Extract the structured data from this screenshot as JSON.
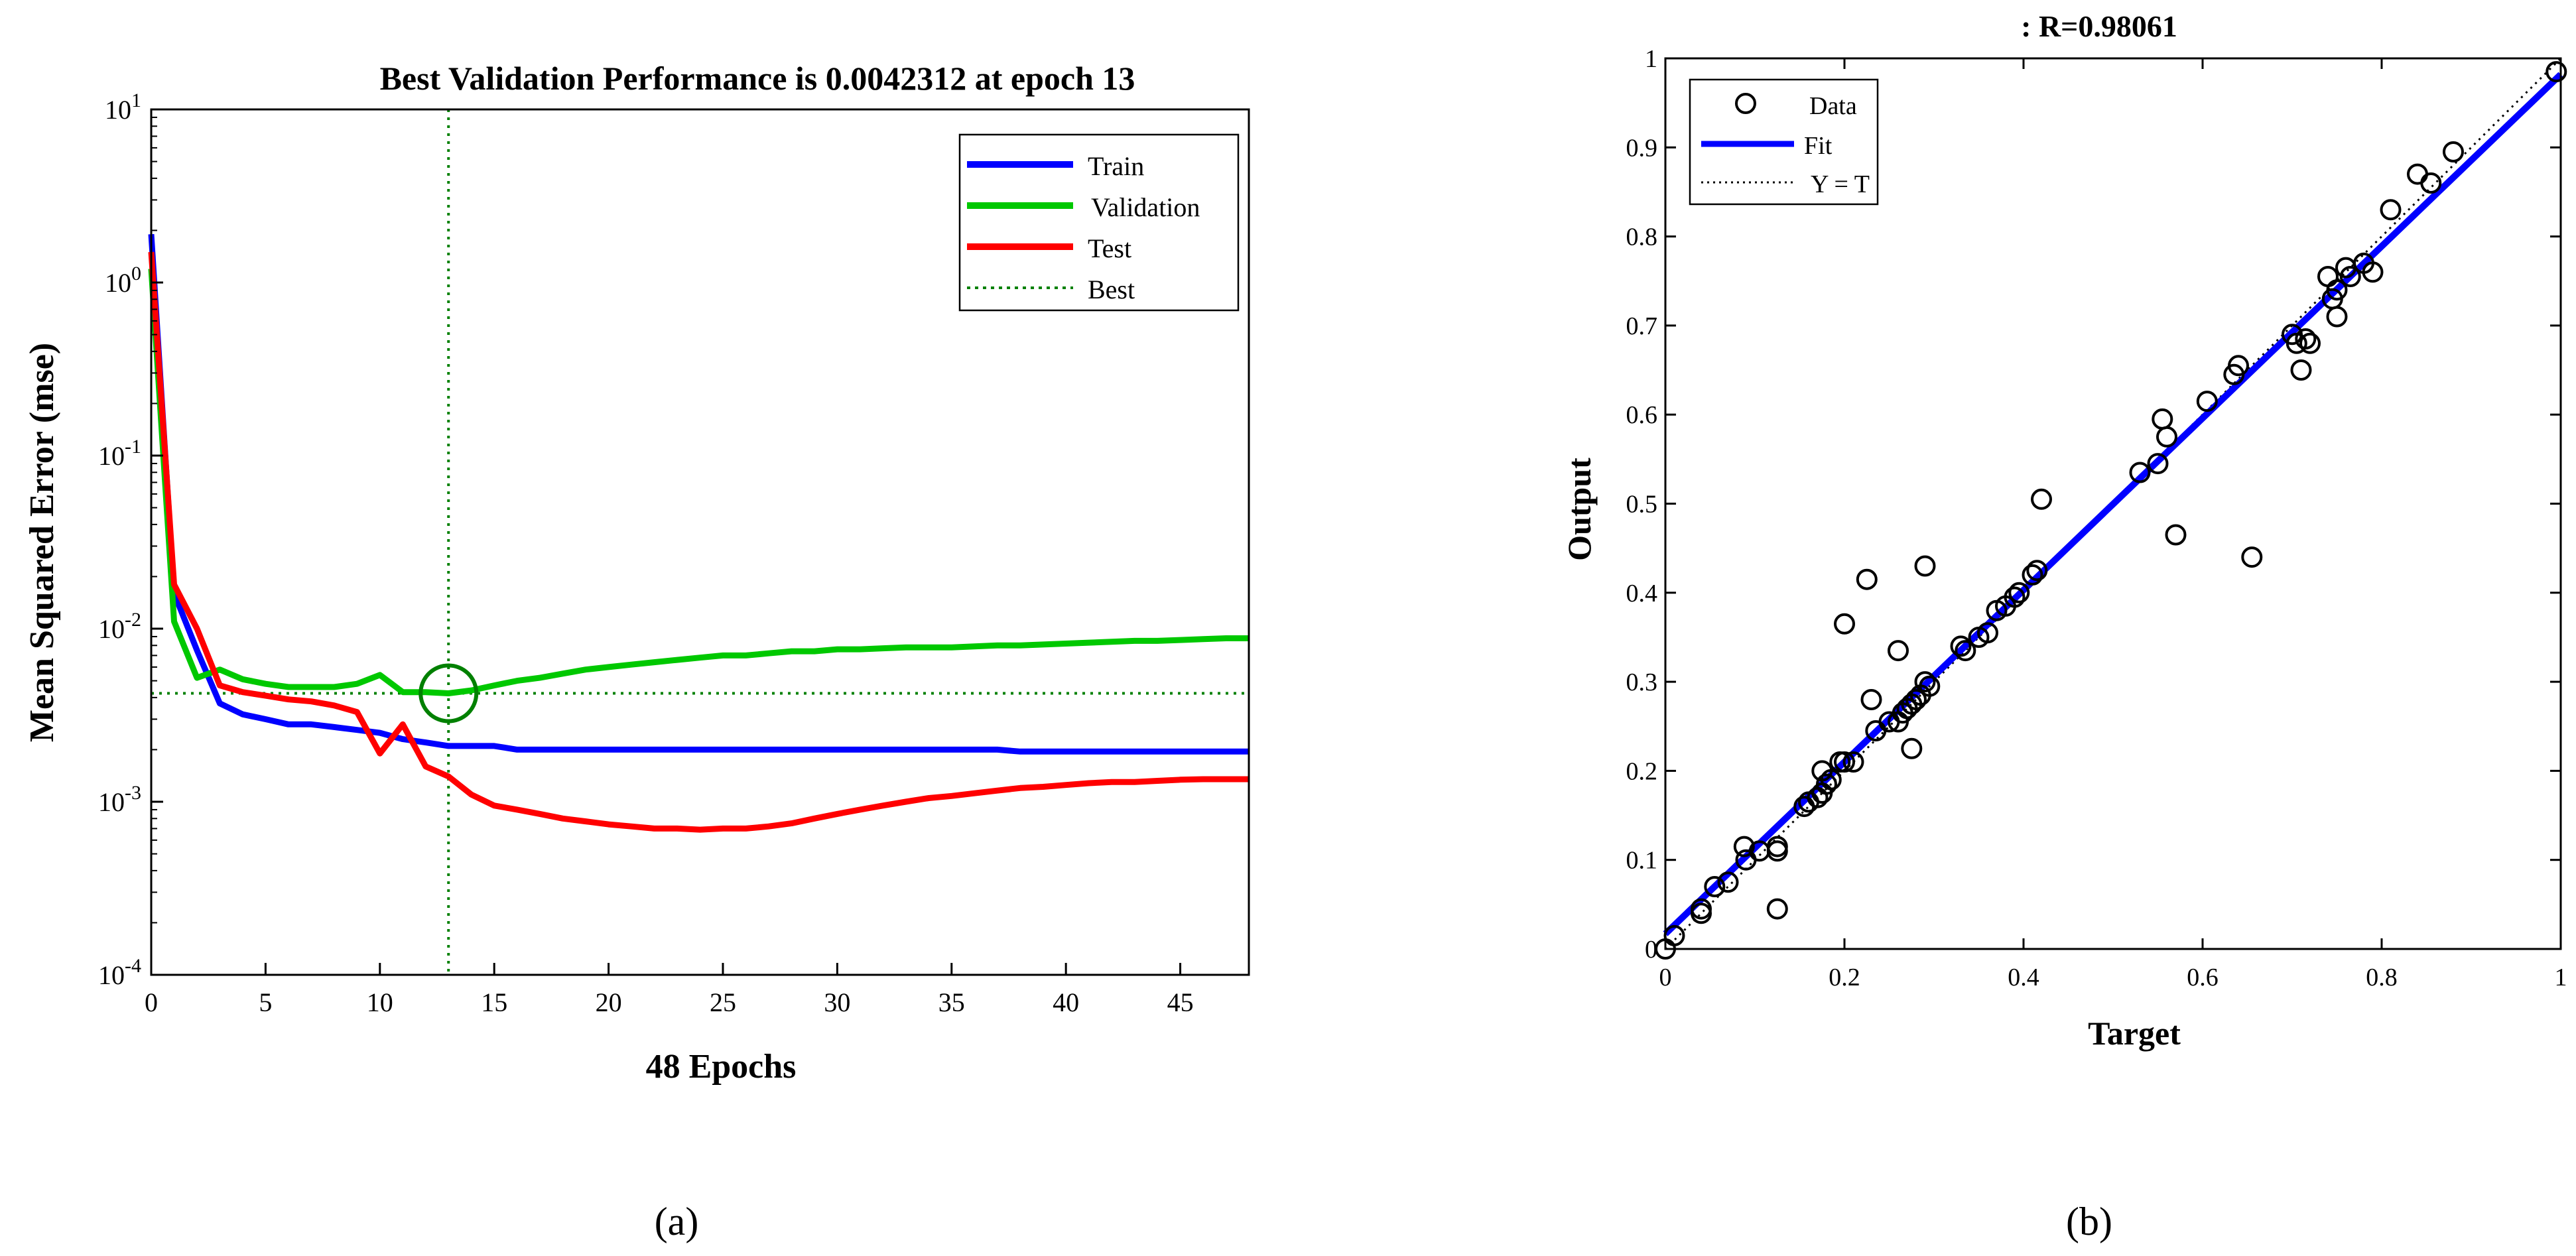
{
  "colors": {
    "train": "#0000ff",
    "validation": "#00c800",
    "test": "#ff0000",
    "best": "#008000",
    "fit": "#0000ff",
    "yt": "#000000",
    "axis": "#000000"
  },
  "chart_data": [
    {
      "type": "line",
      "panel_label": "(a)",
      "title": "Best Validation Performance is 0.0042312 at epoch 13",
      "xlabel": "48 Epochs",
      "ylabel": "Mean Squared Error  (mse)",
      "xscale": "linear",
      "yscale": "log",
      "xlim": [
        0,
        48
      ],
      "ylim": [
        0.0001,
        10
      ],
      "xticks": [
        0,
        5,
        10,
        15,
        20,
        25,
        30,
        35,
        40,
        45
      ],
      "yticks": [
        0.0001,
        0.001,
        0.01,
        0.1,
        1,
        10
      ],
      "ytick_exponents": [
        "-4",
        "-3",
        "-2",
        "-1",
        "0",
        "1"
      ],
      "ytick_base": "10",
      "legend_position": "top-right",
      "x": [
        0,
        1,
        2,
        3,
        4,
        5,
        6,
        7,
        8,
        9,
        10,
        11,
        12,
        13,
        14,
        15,
        16,
        17,
        18,
        19,
        20,
        21,
        22,
        23,
        24,
        25,
        26,
        27,
        28,
        29,
        30,
        31,
        32,
        33,
        34,
        35,
        36,
        37,
        38,
        39,
        40,
        41,
        42,
        43,
        44,
        45,
        46,
        47,
        48
      ],
      "series": [
        {
          "name": "Train",
          "color_key": "train",
          "values": [
            1.9,
            0.016,
            0.0075,
            0.0037,
            0.0032,
            0.003,
            0.0028,
            0.0028,
            0.0027,
            0.0026,
            0.0025,
            0.0023,
            0.0022,
            0.0021,
            0.0021,
            0.0021,
            0.002,
            0.002,
            0.002,
            0.002,
            0.002,
            0.002,
            0.002,
            0.002,
            0.002,
            0.002,
            0.002,
            0.002,
            0.002,
            0.002,
            0.002,
            0.002,
            0.002,
            0.002,
            0.002,
            0.002,
            0.002,
            0.002,
            0.00195,
            0.00195,
            0.00195,
            0.00195,
            0.00195,
            0.00195,
            0.00195,
            0.00195,
            0.00195,
            0.00195,
            0.00195
          ]
        },
        {
          "name": "Validation",
          "color_key": "validation",
          "values": [
            1.2,
            0.011,
            0.0052,
            0.0058,
            0.0051,
            0.0048,
            0.0046,
            0.0046,
            0.0046,
            0.0048,
            0.0054,
            0.0043,
            0.0043,
            0.0042312,
            0.0044,
            0.0047,
            0.005,
            0.0052,
            0.0055,
            0.0058,
            0.006,
            0.0062,
            0.0064,
            0.0066,
            0.0068,
            0.007,
            0.007,
            0.0072,
            0.0074,
            0.0074,
            0.0076,
            0.0076,
            0.0077,
            0.0078,
            0.0078,
            0.0078,
            0.0079,
            0.008,
            0.008,
            0.0081,
            0.0082,
            0.0083,
            0.0084,
            0.0085,
            0.0085,
            0.0086,
            0.0087,
            0.0088,
            0.0088
          ]
        },
        {
          "name": "Test",
          "color_key": "test",
          "values": [
            1.5,
            0.018,
            0.01,
            0.0047,
            0.0043,
            0.0041,
            0.0039,
            0.0038,
            0.0036,
            0.0033,
            0.0019,
            0.0028,
            0.0016,
            0.0014,
            0.0011,
            0.00095,
            0.0009,
            0.00085,
            0.0008,
            0.00077,
            0.00074,
            0.00072,
            0.0007,
            0.0007,
            0.00069,
            0.0007,
            0.0007,
            0.00072,
            0.00075,
            0.0008,
            0.00085,
            0.0009,
            0.00095,
            0.001,
            0.00105,
            0.00108,
            0.00112,
            0.00116,
            0.0012,
            0.00122,
            0.00125,
            0.00128,
            0.0013,
            0.0013,
            0.00132,
            0.00134,
            0.00135,
            0.00135,
            0.00135
          ]
        }
      ],
      "best": {
        "name": "Best",
        "epoch": 13,
        "value": 0.0042312
      },
      "legend": [
        "Train",
        "Validation",
        "Test",
        "Best"
      ]
    },
    {
      "type": "scatter",
      "panel_label": "(b)",
      "title": ": R=0.98061",
      "xlabel": "Target",
      "ylabel": "Output",
      "xlim": [
        0,
        1
      ],
      "ylim": [
        0,
        1
      ],
      "xticks": [
        0,
        0.2,
        0.4,
        0.6,
        0.8,
        1
      ],
      "xtick_labels": [
        "0",
        "0.2",
        "0.4",
        "0.6",
        "0.8",
        "1"
      ],
      "yticks": [
        0,
        0.1,
        0.2,
        0.3,
        0.4,
        0.5,
        0.6,
        0.7,
        0.8,
        0.9,
        1
      ],
      "ytick_labels": [
        "0",
        "0.1",
        "0.2",
        "0.3",
        "0.4",
        "0.5",
        "0.6",
        "0.7",
        "0.8",
        "0.9",
        "1"
      ],
      "legend": [
        "Data",
        "Fit",
        "Y = T"
      ],
      "legend_position": "top-left",
      "fit_line": {
        "slope": 0.965,
        "intercept": 0.017
      },
      "points": [
        [
          0.0,
          0.0
        ],
        [
          0.01,
          0.015
        ],
        [
          0.04,
          0.04
        ],
        [
          0.04,
          0.045
        ],
        [
          0.055,
          0.07
        ],
        [
          0.07,
          0.075
        ],
        [
          0.09,
          0.1
        ],
        [
          0.088,
          0.115
        ],
        [
          0.105,
          0.11
        ],
        [
          0.125,
          0.11
        ],
        [
          0.125,
          0.115
        ],
        [
          0.125,
          0.045
        ],
        [
          0.155,
          0.16
        ],
        [
          0.16,
          0.165
        ],
        [
          0.17,
          0.17
        ],
        [
          0.175,
          0.175
        ],
        [
          0.18,
          0.185
        ],
        [
          0.185,
          0.19
        ],
        [
          0.195,
          0.21
        ],
        [
          0.2,
          0.21
        ],
        [
          0.175,
          0.2
        ],
        [
          0.21,
          0.21
        ],
        [
          0.2,
          0.365
        ],
        [
          0.225,
          0.415
        ],
        [
          0.23,
          0.28
        ],
        [
          0.235,
          0.245
        ],
        [
          0.25,
          0.255
        ],
        [
          0.26,
          0.255
        ],
        [
          0.265,
          0.265
        ],
        [
          0.27,
          0.27
        ],
        [
          0.275,
          0.275
        ],
        [
          0.275,
          0.225
        ],
        [
          0.26,
          0.335
        ],
        [
          0.28,
          0.28
        ],
        [
          0.285,
          0.285
        ],
        [
          0.29,
          0.3
        ],
        [
          0.29,
          0.43
        ],
        [
          0.295,
          0.295
        ],
        [
          0.33,
          0.34
        ],
        [
          0.335,
          0.335
        ],
        [
          0.35,
          0.35
        ],
        [
          0.36,
          0.355
        ],
        [
          0.37,
          0.38
        ],
        [
          0.38,
          0.385
        ],
        [
          0.39,
          0.395
        ],
        [
          0.395,
          0.4
        ],
        [
          0.41,
          0.42
        ],
        [
          0.415,
          0.425
        ],
        [
          0.42,
          0.505
        ],
        [
          0.53,
          0.535
        ],
        [
          0.55,
          0.545
        ],
        [
          0.555,
          0.595
        ],
        [
          0.56,
          0.575
        ],
        [
          0.57,
          0.465
        ],
        [
          0.605,
          0.615
        ],
        [
          0.635,
          0.645
        ],
        [
          0.64,
          0.655
        ],
        [
          0.655,
          0.44
        ],
        [
          0.7,
          0.69
        ],
        [
          0.705,
          0.68
        ],
        [
          0.71,
          0.65
        ],
        [
          0.715,
          0.685
        ],
        [
          0.72,
          0.68
        ],
        [
          0.74,
          0.755
        ],
        [
          0.745,
          0.73
        ],
        [
          0.75,
          0.71
        ],
        [
          0.75,
          0.74
        ],
        [
          0.76,
          0.765
        ],
        [
          0.765,
          0.755
        ],
        [
          0.78,
          0.77
        ],
        [
          0.79,
          0.76
        ],
        [
          0.81,
          0.83
        ],
        [
          0.84,
          0.87
        ],
        [
          0.855,
          0.86
        ],
        [
          0.88,
          0.895
        ],
        [
          0.995,
          0.985
        ]
      ]
    }
  ]
}
